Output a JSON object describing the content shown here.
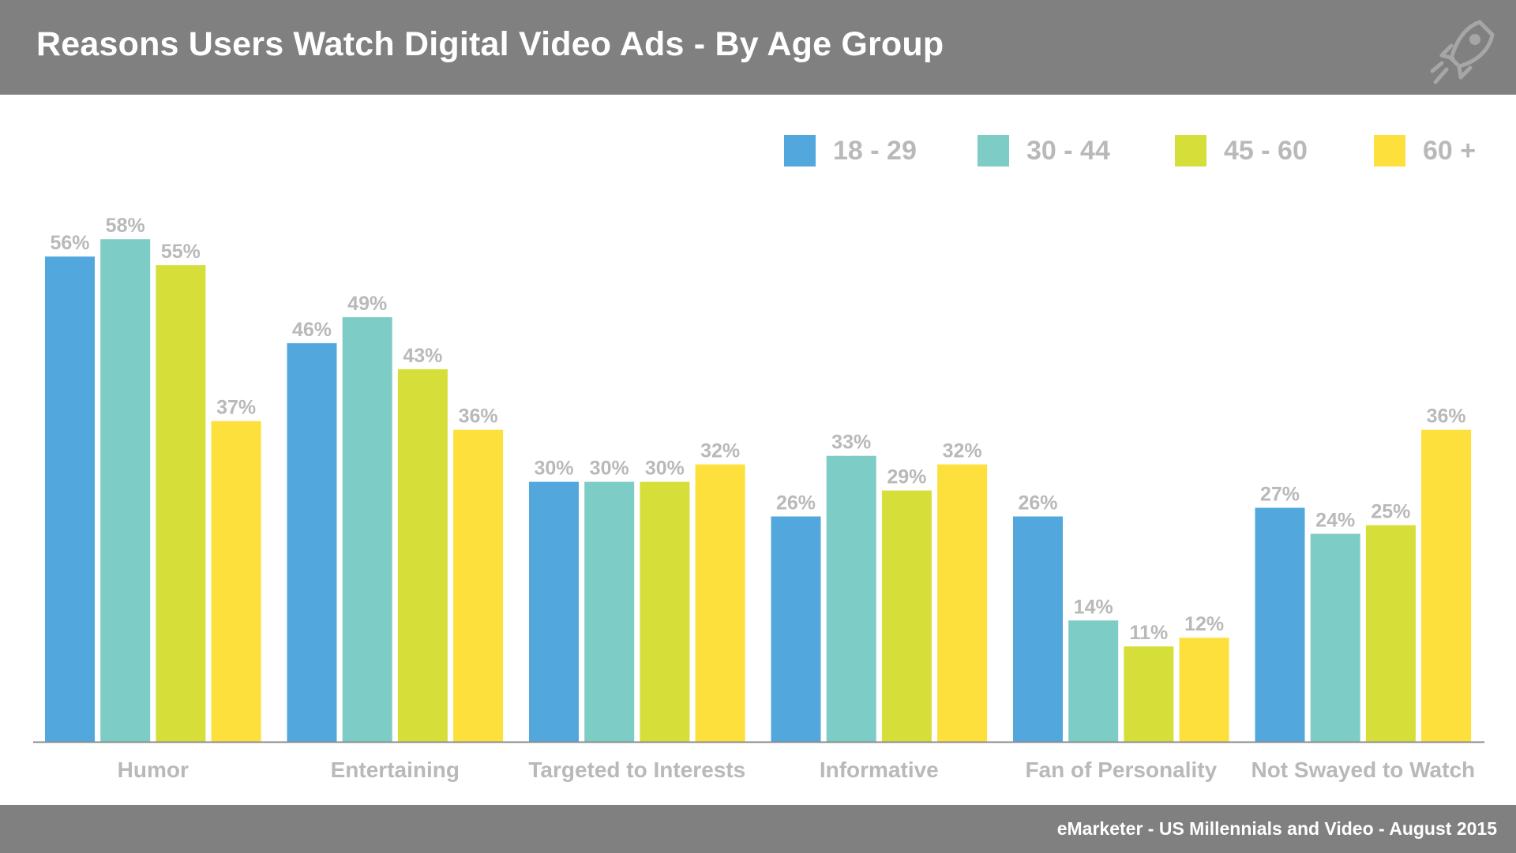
{
  "header": {
    "title": "Reasons Users Watch Digital Video Ads - By Age Group"
  },
  "footer": {
    "source": "eMarketer - US Millennials and Video - August 2015"
  },
  "colors": {
    "header_bg": "#808080",
    "label_gray": "#b9b9b9",
    "axis": "#8a8a8a",
    "series": [
      "#52a8dd",
      "#7dccc6",
      "#d6df3a",
      "#fde03c"
    ]
  },
  "legend": [
    {
      "label": "18 - 29"
    },
    {
      "label": "30 - 44"
    },
    {
      "label": "45 - 60"
    },
    {
      "label": "60 +"
    }
  ],
  "chart_data": {
    "type": "bar",
    "title": "Reasons Users Watch Digital Video Ads - By Age Group",
    "categories": [
      "Humor",
      "Entertaining",
      "Targeted to Interests",
      "Informative",
      "Fan of Personality",
      "Not Swayed to Watch"
    ],
    "series": [
      {
        "name": "18 - 29",
        "values": [
          56,
          46,
          30,
          26,
          26,
          27
        ]
      },
      {
        "name": "30 - 44",
        "values": [
          58,
          49,
          30,
          33,
          14,
          24
        ]
      },
      {
        "name": "45 - 60",
        "values": [
          55,
          43,
          30,
          29,
          11,
          25
        ]
      },
      {
        "name": "60 +",
        "values": [
          37,
          36,
          32,
          32,
          12,
          36
        ]
      }
    ],
    "value_suffix": "%",
    "ylim": [
      0,
      65
    ],
    "grid": false,
    "legend_position": "top-right"
  }
}
